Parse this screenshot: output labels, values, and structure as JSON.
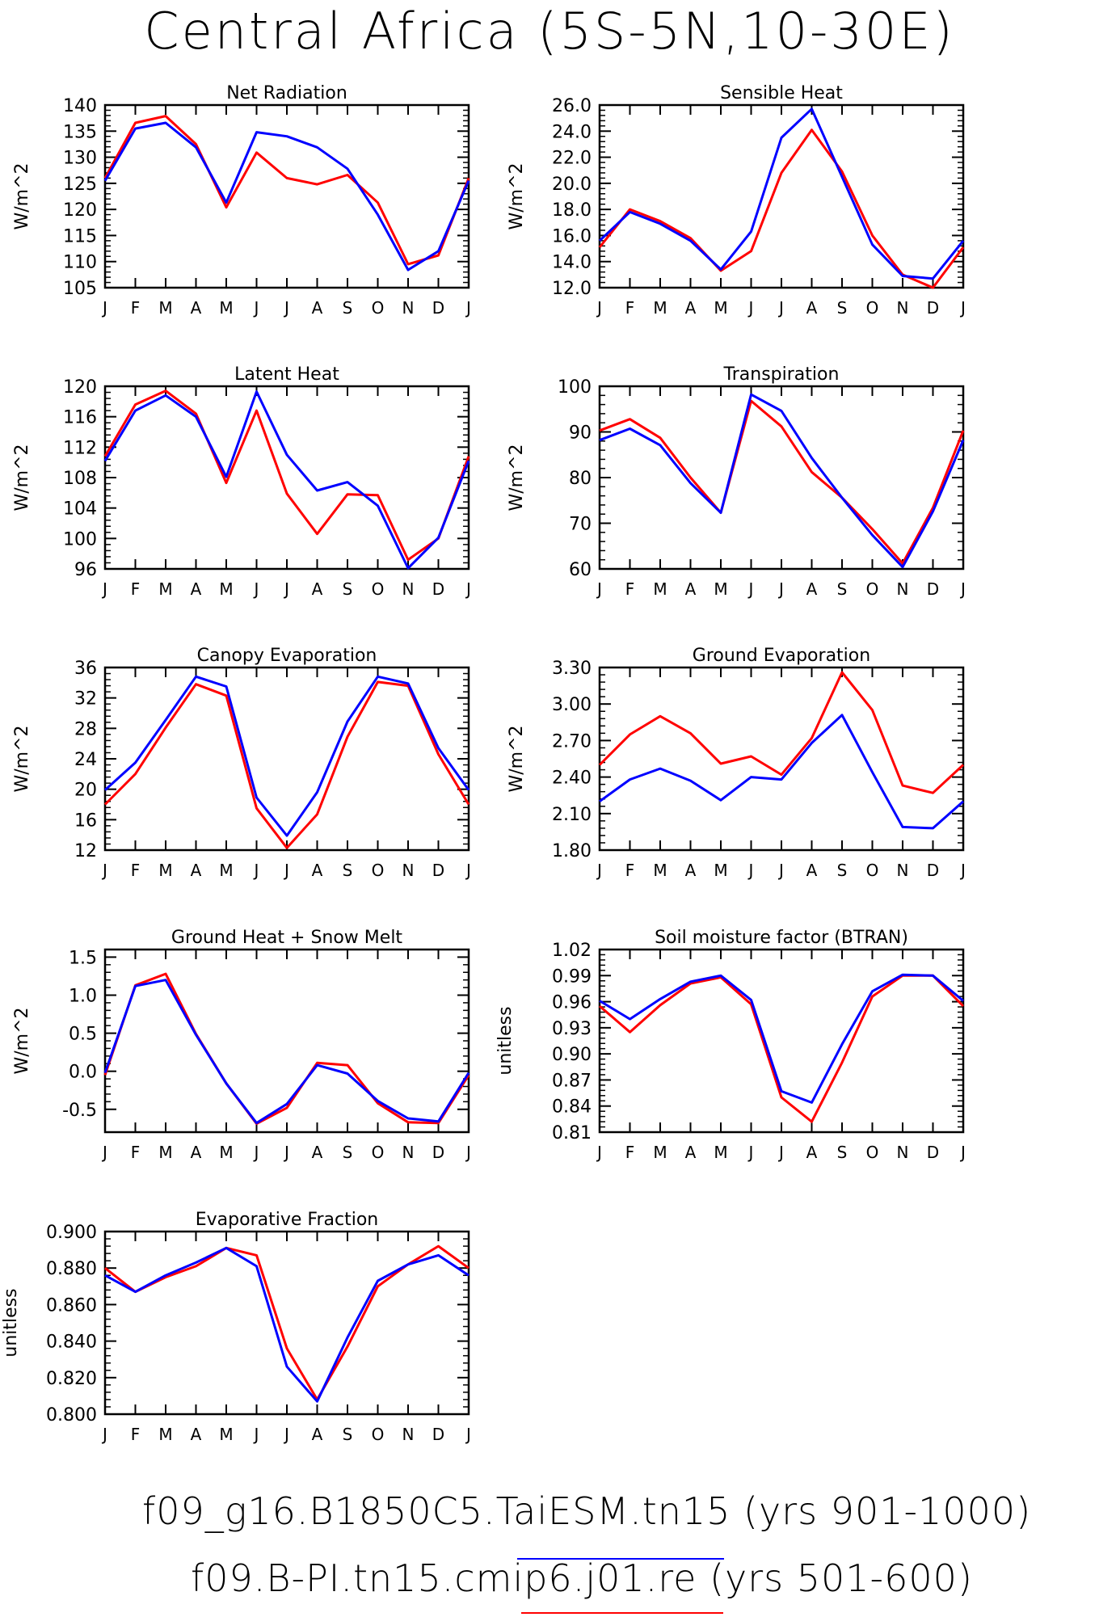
{
  "title": "Central Africa (5S-5N,10-30E)",
  "months": [
    "J",
    "F",
    "M",
    "A",
    "M",
    "J",
    "J",
    "A",
    "S",
    "O",
    "N",
    "D",
    "J"
  ],
  "legend": [
    {
      "name": "f09_g16.B1850C5.TaiESM.tn15 (yrs 901-1000)",
      "color": "#0000ff"
    },
    {
      "name": "f09.B-PI.tn15.cmip6.j01.re (yrs 501-600)",
      "color": "#ff0000"
    }
  ],
  "chart_data": [
    {
      "type": "line",
      "title": "Net Radiation",
      "ylabel": "W/m^2",
      "ylim": [
        105,
        140
      ],
      "yticks": [
        "105",
        "110",
        "115",
        "120",
        "125",
        "130",
        "135",
        "140"
      ],
      "series": [
        {
          "color": "#ff0000",
          "values": [
            126,
            136.6,
            137.9,
            132.5,
            120.4,
            130.9,
            126,
            124.8,
            126.6,
            121.3,
            109.5,
            111.2,
            126
          ]
        },
        {
          "color": "#0000ff",
          "values": [
            125.5,
            135.5,
            136.6,
            131.9,
            121.3,
            134.8,
            134,
            131.9,
            127.8,
            119,
            108.4,
            112,
            125.5
          ]
        }
      ]
    },
    {
      "type": "line",
      "title": "Sensible Heat",
      "ylabel": "W/m^2",
      "ylim": [
        12,
        26
      ],
      "yticks": [
        "12.0",
        "14.0",
        "16.0",
        "18.0",
        "20.0",
        "22.0",
        "24.0",
        "26.0"
      ],
      "series": [
        {
          "color": "#ff0000",
          "values": [
            15.1,
            18,
            17.1,
            15.8,
            13.3,
            14.8,
            20.8,
            24.1,
            20.9,
            16,
            13,
            12,
            15.1
          ]
        },
        {
          "color": "#0000ff",
          "values": [
            15.6,
            17.8,
            16.9,
            15.6,
            13.4,
            16.3,
            23.5,
            25.7,
            20.5,
            15.3,
            12.9,
            12.7,
            15.6
          ]
        }
      ]
    },
    {
      "type": "line",
      "title": "Latent Heat",
      "ylabel": "W/m^2",
      "ylim": [
        96,
        120
      ],
      "yticks": [
        "96",
        "100",
        "104",
        "108",
        "112",
        "116",
        "120"
      ],
      "series": [
        {
          "color": "#ff0000",
          "values": [
            110.8,
            117.6,
            119.4,
            116.4,
            107.3,
            116.8,
            105.9,
            100.6,
            105.8,
            105.7,
            97.2,
            100,
            110.8
          ]
        },
        {
          "color": "#0000ff",
          "values": [
            110.2,
            116.8,
            118.8,
            116,
            108.1,
            119.3,
            111,
            106.3,
            107.4,
            104.3,
            96.1,
            100.1,
            110.2
          ]
        }
      ]
    },
    {
      "type": "line",
      "title": "Transpiration",
      "ylabel": "W/m^2",
      "ylim": [
        60,
        100
      ],
      "yticks": [
        "60",
        "70",
        "80",
        "90",
        "100"
      ],
      "series": [
        {
          "color": "#ff0000",
          "values": [
            90.3,
            92.8,
            88.7,
            80,
            72.3,
            96.8,
            91.2,
            81.2,
            75.6,
            68.7,
            61.2,
            73.4,
            90.3
          ]
        },
        {
          "color": "#0000ff",
          "values": [
            88.2,
            90.7,
            87.1,
            78.8,
            72.3,
            98.2,
            94.6,
            84.3,
            75.6,
            67.4,
            60.4,
            72.6,
            88.2
          ]
        }
      ]
    },
    {
      "type": "line",
      "title": "Canopy Evaporation",
      "ylabel": "W/m^2",
      "ylim": [
        12,
        36
      ],
      "yticks": [
        "12",
        "16",
        "20",
        "24",
        "28",
        "32",
        "36"
      ],
      "series": [
        {
          "color": "#ff0000",
          "values": [
            18,
            22,
            28.1,
            33.8,
            32.3,
            17.5,
            12.3,
            16.7,
            26.9,
            34.1,
            33.6,
            24.6,
            18
          ]
        },
        {
          "color": "#0000ff",
          "values": [
            19.9,
            23.5,
            29.1,
            34.8,
            33.5,
            18.9,
            13.9,
            19.6,
            28.9,
            34.8,
            33.9,
            25.4,
            19.9
          ]
        }
      ]
    },
    {
      "type": "line",
      "title": "Ground Evaporation",
      "ylabel": "W/m^2",
      "ylim": [
        1.8,
        3.3
      ],
      "yticks": [
        "1.80",
        "2.10",
        "2.40",
        "2.70",
        "3.00",
        "3.30"
      ],
      "series": [
        {
          "color": "#ff0000",
          "values": [
            2.5,
            2.75,
            2.9,
            2.76,
            2.51,
            2.57,
            2.42,
            2.72,
            3.26,
            2.95,
            2.33,
            2.27,
            2.5
          ]
        },
        {
          "color": "#0000ff",
          "values": [
            2.2,
            2.38,
            2.47,
            2.37,
            2.21,
            2.4,
            2.38,
            2.68,
            2.91,
            2.44,
            1.99,
            1.98,
            2.2
          ]
        }
      ]
    },
    {
      "type": "line",
      "title": "Ground Heat + Snow Melt",
      "ylabel": "W/m^2",
      "ylim": [
        -0.8,
        1.6
      ],
      "yticks": [
        "-0.5",
        "0.0",
        "0.5",
        "1.0",
        "1.5"
      ],
      "ytickvals": [
        -0.5,
        0,
        0.5,
        1,
        1.5
      ],
      "series": [
        {
          "color": "#ff0000",
          "values": [
            -0.05,
            1.13,
            1.28,
            0.49,
            -0.16,
            -0.69,
            -0.48,
            0.11,
            0.08,
            -0.42,
            -0.67,
            -0.68,
            -0.05
          ]
        },
        {
          "color": "#0000ff",
          "values": [
            -0.02,
            1.12,
            1.2,
            0.48,
            -0.16,
            -0.68,
            -0.43,
            0.08,
            -0.03,
            -0.39,
            -0.62,
            -0.66,
            -0.02
          ]
        }
      ]
    },
    {
      "type": "line",
      "title": "Soil moisture factor (BTRAN)",
      "ylabel": "unitless",
      "ylim": [
        0.81,
        1.02
      ],
      "yticks": [
        "0.81",
        "0.84",
        "0.87",
        "0.90",
        "0.93",
        "0.96",
        "0.99",
        "1.02"
      ],
      "series": [
        {
          "color": "#ff0000",
          "values": [
            0.955,
            0.925,
            0.956,
            0.981,
            0.988,
            0.957,
            0.85,
            0.822,
            0.89,
            0.966,
            0.99,
            0.99,
            0.955
          ]
        },
        {
          "color": "#0000ff",
          "values": [
            0.961,
            0.94,
            0.963,
            0.983,
            0.99,
            0.962,
            0.857,
            0.844,
            0.911,
            0.972,
            0.991,
            0.99,
            0.961
          ]
        }
      ]
    },
    {
      "type": "line",
      "title": "Evaporative Fraction",
      "ylabel": "unitless",
      "ylim": [
        0.8,
        0.9
      ],
      "yticks": [
        "0.800",
        "0.820",
        "0.840",
        "0.860",
        "0.880",
        "0.900"
      ],
      "series": [
        {
          "color": "#ff0000",
          "values": [
            0.88,
            0.867,
            0.875,
            0.881,
            0.891,
            0.887,
            0.836,
            0.808,
            0.837,
            0.87,
            0.882,
            0.892,
            0.88
          ]
        },
        {
          "color": "#0000ff",
          "values": [
            0.876,
            0.867,
            0.876,
            0.883,
            0.891,
            0.881,
            0.826,
            0.807,
            0.842,
            0.873,
            0.882,
            0.887,
            0.876
          ]
        }
      ]
    }
  ]
}
